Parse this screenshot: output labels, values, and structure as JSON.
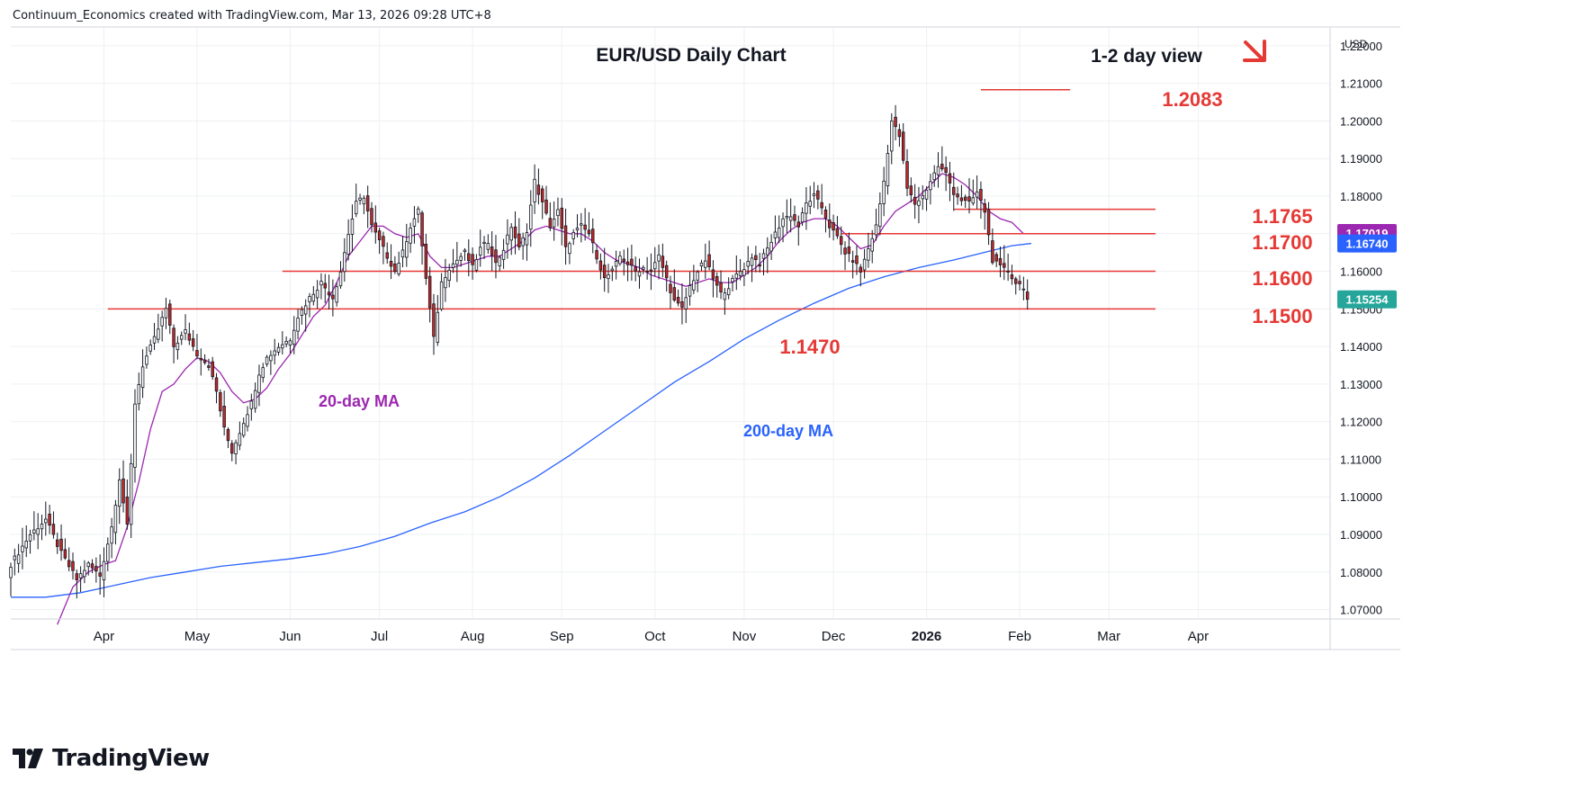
{
  "header": {
    "attribution": "Continuum_Economics created with TradingView.com, Mar 13, 2026 09:28 UTC+8"
  },
  "brand": {
    "name": "TradingView"
  },
  "colors": {
    "up": "#26a69a",
    "down": "#ef5350",
    "candle_up": "#ffffff",
    "candle_down": "#c62828",
    "wick": "#131722",
    "resistance": "#e53935",
    "ma20": "#9c27b0",
    "ma200": "#2962ff",
    "grid": "#eef0f3",
    "axis_text": "#131722"
  },
  "chart_data": {
    "type": "candlestick",
    "symbol": "EUR/USD",
    "title": "EUR/USD Daily Chart",
    "subtitle": "1-2 day view",
    "bias_icon": "down-arrow-icon",
    "currency_label": "USD",
    "ylim": [
      1.0675,
      1.225
    ],
    "y_ticks": [
      "1.22000",
      "1.21000",
      "1.20000",
      "1.19000",
      "1.18000",
      "1.17000",
      "1.16000",
      "1.15000",
      "1.14000",
      "1.13000",
      "1.12000",
      "1.11000",
      "1.10000",
      "1.09000",
      "1.08000",
      "1.07000"
    ],
    "x_ticks": [
      "Apr",
      "May",
      "Jun",
      "Jul",
      "Aug",
      "Sep",
      "Oct",
      "Nov",
      "Dec",
      "2026",
      "Feb",
      "Mar",
      "Apr"
    ],
    "levels": [
      {
        "label": "1.2083",
        "value": 1.2083
      },
      {
        "label": "1.1765",
        "value": 1.1765
      },
      {
        "label": "1.1700",
        "value": 1.17
      },
      {
        "label": "1.1600",
        "value": 1.16
      },
      {
        "label": "1.1500",
        "value": 1.15
      },
      {
        "label": "1.1470",
        "value": 1.147
      }
    ],
    "price_tags": [
      {
        "label": "1.17019",
        "value": 1.17019,
        "series": "20-day MA"
      },
      {
        "label": "1.16740",
        "value": 1.1674,
        "series": "200-day MA"
      },
      {
        "label": "1.15254",
        "value": 1.15254,
        "series": "last"
      }
    ],
    "ma_labels": {
      "ma20": "20-day MA",
      "ma200": "200-day MA"
    },
    "close_path": [
      [
        0,
        1.082
      ],
      [
        5,
        1.09
      ],
      [
        9,
        1.094
      ],
      [
        13,
        1.085
      ],
      [
        17,
        1.078
      ],
      [
        20,
        1.082
      ],
      [
        23,
        1.079
      ],
      [
        26,
        1.092
      ],
      [
        28,
        1.105
      ],
      [
        30,
        1.092
      ],
      [
        32,
        1.125
      ],
      [
        34,
        1.135
      ],
      [
        37,
        1.142
      ],
      [
        40,
        1.15
      ],
      [
        42,
        1.14
      ],
      [
        45,
        1.144
      ],
      [
        48,
        1.138
      ],
      [
        51,
        1.135
      ],
      [
        53,
        1.128
      ],
      [
        55,
        1.118
      ],
      [
        57,
        1.112
      ],
      [
        60,
        1.12
      ],
      [
        62,
        1.125
      ],
      [
        64,
        1.133
      ],
      [
        66,
        1.137
      ],
      [
        69,
        1.14
      ],
      [
        72,
        1.142
      ],
      [
        74,
        1.148
      ],
      [
        77,
        1.153
      ],
      [
        80,
        1.157
      ],
      [
        83,
        1.153
      ],
      [
        85,
        1.16
      ],
      [
        87,
        1.17
      ],
      [
        89,
        1.178
      ],
      [
        91,
        1.18
      ],
      [
        93,
        1.172
      ],
      [
        95,
        1.168
      ],
      [
        97,
        1.164
      ],
      [
        99,
        1.16
      ],
      [
        101,
        1.165
      ],
      [
        103,
        1.172
      ],
      [
        105,
        1.176
      ],
      [
        107,
        1.158
      ],
      [
        109,
        1.142
      ],
      [
        111,
        1.157
      ],
      [
        113,
        1.161
      ],
      [
        115,
        1.163
      ],
      [
        117,
        1.165
      ],
      [
        119,
        1.161
      ],
      [
        121,
        1.166
      ],
      [
        123,
        1.168
      ],
      [
        125,
        1.162
      ],
      [
        127,
        1.166
      ],
      [
        129,
        1.172
      ],
      [
        131,
        1.166
      ],
      [
        133,
        1.171
      ],
      [
        135,
        1.184
      ],
      [
        137,
        1.178
      ],
      [
        139,
        1.172
      ],
      [
        141,
        1.176
      ],
      [
        143,
        1.166
      ],
      [
        145,
        1.17
      ],
      [
        147,
        1.172
      ],
      [
        149,
        1.17
      ],
      [
        151,
        1.164
      ],
      [
        153,
        1.158
      ],
      [
        155,
        1.16
      ],
      [
        157,
        1.164
      ],
      [
        159,
        1.162
      ],
      [
        161,
        1.16
      ],
      [
        163,
        1.161
      ],
      [
        165,
        1.16
      ],
      [
        167,
        1.164
      ],
      [
        169,
        1.158
      ],
      [
        171,
        1.152
      ],
      [
        173,
        1.15
      ],
      [
        175,
        1.156
      ],
      [
        177,
        1.16
      ],
      [
        179,
        1.163
      ],
      [
        181,
        1.158
      ],
      [
        183,
        1.154
      ],
      [
        185,
        1.156
      ],
      [
        187,
        1.159
      ],
      [
        189,
        1.161
      ],
      [
        191,
        1.164
      ],
      [
        193,
        1.162
      ],
      [
        195,
        1.166
      ],
      [
        197,
        1.17
      ],
      [
        199,
        1.174
      ],
      [
        201,
        1.175
      ],
      [
        203,
        1.172
      ],
      [
        205,
        1.178
      ],
      [
        207,
        1.18
      ],
      [
        209,
        1.177
      ],
      [
        211,
        1.172
      ],
      [
        213,
        1.169
      ],
      [
        215,
        1.165
      ],
      [
        217,
        1.163
      ],
      [
        219,
        1.16
      ],
      [
        221,
        1.166
      ],
      [
        223,
        1.172
      ],
      [
        225,
        1.184
      ],
      [
        227,
        1.2
      ],
      [
        229,
        1.196
      ],
      [
        231,
        1.182
      ],
      [
        233,
        1.178
      ],
      [
        235,
        1.18
      ],
      [
        237,
        1.184
      ],
      [
        239,
        1.188
      ],
      [
        241,
        1.186
      ],
      [
        243,
        1.181
      ],
      [
        245,
        1.179
      ],
      [
        247,
        1.178
      ],
      [
        249,
        1.181
      ],
      [
        251,
        1.176
      ],
      [
        253,
        1.163
      ],
      [
        255,
        1.161
      ],
      [
        257,
        1.16
      ],
      [
        259,
        1.157
      ],
      [
        261,
        1.156
      ],
      [
        262,
        1.152
      ]
    ],
    "ma20_path": [
      [
        12,
        1.066
      ],
      [
        16,
        1.076
      ],
      [
        20,
        1.08
      ],
      [
        24,
        1.082
      ],
      [
        27,
        1.083
      ],
      [
        30,
        1.092
      ],
      [
        33,
        1.104
      ],
      [
        36,
        1.118
      ],
      [
        39,
        1.128
      ],
      [
        42,
        1.13
      ],
      [
        45,
        1.134
      ],
      [
        48,
        1.137
      ],
      [
        51,
        1.136
      ],
      [
        54,
        1.133
      ],
      [
        57,
        1.128
      ],
      [
        60,
        1.125
      ],
      [
        63,
        1.126
      ],
      [
        66,
        1.129
      ],
      [
        69,
        1.134
      ],
      [
        72,
        1.138
      ],
      [
        75,
        1.143
      ],
      [
        78,
        1.148
      ],
      [
        81,
        1.151
      ],
      [
        84,
        1.157
      ],
      [
        87,
        1.164
      ],
      [
        90,
        1.168
      ],
      [
        93,
        1.172
      ],
      [
        96,
        1.172
      ],
      [
        99,
        1.17
      ],
      [
        102,
        1.169
      ],
      [
        105,
        1.17
      ],
      [
        108,
        1.164
      ],
      [
        111,
        1.161
      ],
      [
        114,
        1.161
      ],
      [
        117,
        1.162
      ],
      [
        120,
        1.163
      ],
      [
        123,
        1.164
      ],
      [
        126,
        1.164
      ],
      [
        129,
        1.166
      ],
      [
        132,
        1.168
      ],
      [
        135,
        1.171
      ],
      [
        138,
        1.172
      ],
      [
        141,
        1.171
      ],
      [
        144,
        1.17
      ],
      [
        147,
        1.17
      ],
      [
        150,
        1.168
      ],
      [
        153,
        1.165
      ],
      [
        156,
        1.163
      ],
      [
        159,
        1.162
      ],
      [
        162,
        1.161
      ],
      [
        165,
        1.159
      ],
      [
        168,
        1.158
      ],
      [
        171,
        1.157
      ],
      [
        174,
        1.156
      ],
      [
        177,
        1.157
      ],
      [
        180,
        1.158
      ],
      [
        183,
        1.157
      ],
      [
        186,
        1.157
      ],
      [
        189,
        1.159
      ],
      [
        192,
        1.161
      ],
      [
        195,
        1.164
      ],
      [
        198,
        1.168
      ],
      [
        201,
        1.171
      ],
      [
        204,
        1.173
      ],
      [
        207,
        1.174
      ],
      [
        210,
        1.174
      ],
      [
        213,
        1.172
      ],
      [
        216,
        1.169
      ],
      [
        219,
        1.166
      ],
      [
        222,
        1.167
      ],
      [
        225,
        1.172
      ],
      [
        228,
        1.176
      ],
      [
        231,
        1.178
      ],
      [
        234,
        1.18
      ],
      [
        237,
        1.183
      ],
      [
        240,
        1.186
      ],
      [
        243,
        1.185
      ],
      [
        246,
        1.183
      ],
      [
        249,
        1.18
      ],
      [
        252,
        1.176
      ],
      [
        255,
        1.174
      ],
      [
        258,
        1.173
      ],
      [
        261,
        1.17
      ]
    ],
    "ma200_path": [
      [
        0,
        1.0733
      ],
      [
        9,
        1.0733
      ],
      [
        18,
        1.0745
      ],
      [
        27,
        1.0765
      ],
      [
        36,
        1.0785
      ],
      [
        45,
        1.08
      ],
      [
        54,
        1.0815
      ],
      [
        63,
        1.0825
      ],
      [
        72,
        1.0835
      ],
      [
        81,
        1.0848
      ],
      [
        90,
        1.0868
      ],
      [
        99,
        1.0895
      ],
      [
        108,
        1.093
      ],
      [
        117,
        1.096
      ],
      [
        126,
        1.1
      ],
      [
        135,
        1.105
      ],
      [
        144,
        1.111
      ],
      [
        153,
        1.1175
      ],
      [
        162,
        1.124
      ],
      [
        171,
        1.1305
      ],
      [
        180,
        1.136
      ],
      [
        189,
        1.142
      ],
      [
        198,
        1.147
      ],
      [
        207,
        1.1515
      ],
      [
        216,
        1.1555
      ],
      [
        225,
        1.1585
      ],
      [
        234,
        1.161
      ],
      [
        243,
        1.163
      ],
      [
        252,
        1.1653
      ],
      [
        258,
        1.1668
      ],
      [
        263,
        1.1674
      ]
    ]
  }
}
